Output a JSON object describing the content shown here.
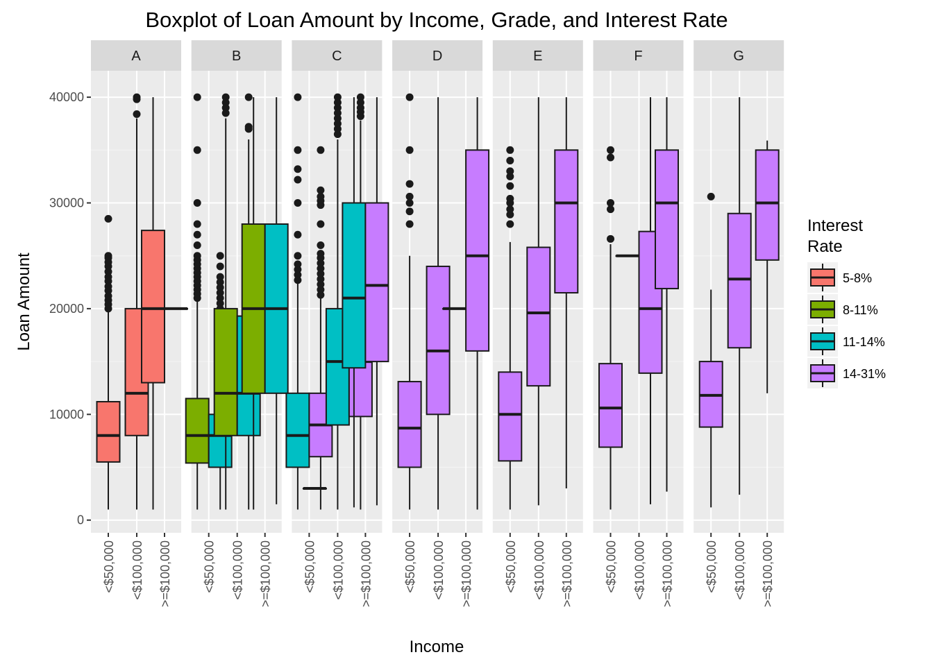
{
  "chart_data": {
    "type": "boxplot",
    "title": "Boxplot of Loan Amount by Income, Grade, and Interest Rate",
    "xlabel": "Income",
    "ylabel": "Loan Amount",
    "ylim": [
      -1200,
      42500
    ],
    "yticks": [
      0,
      10000,
      20000,
      30000,
      40000
    ],
    "ytick_labels": [
      "0",
      "10000",
      "20000",
      "30000",
      "40000"
    ],
    "grid": true,
    "income_levels": [
      "<$50,000",
      "<$100,000",
      ">=$100,000"
    ],
    "legend": {
      "title": "Interest\nRate",
      "position": "right",
      "items": [
        {
          "label": "5-8%",
          "color": "#F8766D"
        },
        {
          "label": "8-11%",
          "color": "#7CAE00"
        },
        {
          "label": "11-14%",
          "color": "#00BFC4"
        },
        {
          "label": "14-31%",
          "color": "#C77CFF"
        }
      ]
    },
    "panels": [
      {
        "grade": "A",
        "boxes": [
          {
            "income": 0,
            "rate": 0,
            "slot": 0,
            "nslots": 1,
            "lo": 1000,
            "q1": 5500,
            "med": 8000,
            "q3": 11200,
            "hi": 19800,
            "out": [
              20000,
              20400,
              20800,
              21200,
              21700,
              22100,
              22600,
              23000,
              23500,
              24000,
              24400,
              24800,
              25000,
              28500
            ]
          },
          {
            "income": 1,
            "rate": 0,
            "slot": 0,
            "nslots": 1,
            "lo": 1000,
            "q1": 8000,
            "med": 12000,
            "q3": 20000,
            "hi": 38000,
            "out": [
              38400,
              39800,
              40000
            ]
          },
          {
            "income": 2,
            "rate": 0,
            "slot": 0,
            "nslots": 2,
            "lo": 1000,
            "q1": 13000,
            "med": 20000,
            "q3": 27400,
            "hi": 40000,
            "out": []
          },
          {
            "income": 2,
            "rate": 0,
            "slot": 1,
            "nslots": 2,
            "lo": 20000,
            "q1": 20000,
            "med": 20000,
            "q3": 20000,
            "hi": 20000,
            "out": []
          }
        ]
      },
      {
        "grade": "B",
        "boxes": [
          {
            "income": 0,
            "rate": 1,
            "slot": 0,
            "nslots": 2,
            "lo": 1000,
            "q1": 5400,
            "med": 8000,
            "q3": 11500,
            "hi": 20800,
            "out": [
              21000,
              21400,
              21800,
              22200,
              22600,
              23000,
              23400,
              23800,
              24200,
              24600,
              25000,
              26000,
              27000,
              28000,
              30000,
              35000,
              40000
            ]
          },
          {
            "income": 0,
            "rate": 2,
            "slot": 1,
            "nslots": 2,
            "lo": 1000,
            "q1": 5000,
            "med": 8000,
            "q3": 10000,
            "hi": 18000,
            "out": [
              18500,
              19000,
              19500,
              20000,
              20500,
              21000,
              21500,
              22000,
              22500,
              23000,
              24000,
              25000
            ]
          },
          {
            "income": 1,
            "rate": 1,
            "slot": 0,
            "nslots": 2,
            "lo": 1000,
            "q1": 8000,
            "med": 12000,
            "q3": 20000,
            "hi": 38000,
            "out": [
              38500,
              39000,
              39500,
              40000
            ]
          },
          {
            "income": 1,
            "rate": 2,
            "slot": 1,
            "nslots": 2,
            "lo": 1000,
            "q1": 8000,
            "med": 12000,
            "q3": 19300,
            "hi": 36000,
            "out": [
              37000,
              37200,
              40000
            ]
          },
          {
            "income": 2,
            "rate": 1,
            "slot": 0,
            "nslots": 2,
            "lo": 1000,
            "q1": 12000,
            "med": 20000,
            "q3": 28000,
            "hi": 40000,
            "out": []
          },
          {
            "income": 2,
            "rate": 2,
            "slot": 1,
            "nslots": 2,
            "lo": 1500,
            "q1": 12000,
            "med": 20000,
            "q3": 28000,
            "hi": 40000,
            "out": []
          }
        ]
      },
      {
        "grade": "C",
        "boxes": [
          {
            "income": 0,
            "rate": 2,
            "slot": 0,
            "nslots": 2,
            "lo": 1000,
            "q1": 5000,
            "med": 8000,
            "q3": 12000,
            "hi": 22400,
            "out": [
              22700,
              23200,
              23700,
              24200,
              25000,
              27000,
              30000,
              32200,
              33200,
              35000,
              40000
            ]
          },
          {
            "income": 0,
            "rate": 3,
            "slot": 1,
            "nslots": 2,
            "lo": 1000,
            "q1": 6000,
            "med": 9000,
            "q3": 12000,
            "hi": 21000,
            "out": [
              21300,
              21800,
              22300,
              22800,
              23300,
              23800,
              24300,
              24800,
              25200,
              26000,
              28000,
              29800,
              30200,
              30600,
              31200,
              35000
            ]
          },
          {
            "income": 1,
            "rate": 1,
            "slot": 0,
            "nslots": 3,
            "lo": 3000,
            "q1": 3000,
            "med": 3000,
            "q3": 3000,
            "hi": 3000,
            "out": []
          },
          {
            "income": 1,
            "rate": 2,
            "slot": 1,
            "nslots": 3,
            "lo": 1000,
            "q1": 9000,
            "med": 15000,
            "q3": 20000,
            "hi": 36000,
            "out": [
              36500,
              37000,
              37500,
              38000,
              38500,
              39000,
              39500,
              40000
            ]
          },
          {
            "income": 1,
            "rate": 3,
            "slot": 2,
            "nslots": 3,
            "lo": 1000,
            "q1": 9800,
            "med": 15000,
            "q3": 21000,
            "hi": 37800,
            "out": [
              38200,
              38600,
              39000,
              39500,
              40000
            ]
          },
          {
            "income": 2,
            "rate": 2,
            "slot": 0,
            "nslots": 2,
            "lo": 1200,
            "q1": 14400,
            "med": 21000,
            "q3": 30000,
            "hi": 40000,
            "out": []
          },
          {
            "income": 2,
            "rate": 3,
            "slot": 1,
            "nslots": 2,
            "lo": 1400,
            "q1": 15000,
            "med": 22200,
            "q3": 30000,
            "hi": 40000,
            "out": []
          }
        ]
      },
      {
        "grade": "D",
        "boxes": [
          {
            "income": 0,
            "rate": 3,
            "slot": 0,
            "nslots": 1,
            "lo": 1000,
            "q1": 5000,
            "med": 8700,
            "q3": 13100,
            "hi": 25000,
            "out": [
              28000,
              29200,
              30000,
              30600,
              31800,
              35000,
              40000
            ]
          },
          {
            "income": 1,
            "rate": 3,
            "slot": 0,
            "nslots": 1,
            "lo": 1000,
            "q1": 10000,
            "med": 16000,
            "q3": 24000,
            "hi": 40000,
            "out": []
          },
          {
            "income": 2,
            "rate": 2,
            "slot": 0,
            "nslots": 2,
            "lo": 20000,
            "q1": 20000,
            "med": 20000,
            "q3": 20000,
            "hi": 20000,
            "out": []
          },
          {
            "income": 2,
            "rate": 3,
            "slot": 1,
            "nslots": 2,
            "lo": 1000,
            "q1": 16000,
            "med": 25000,
            "q3": 35000,
            "hi": 40000,
            "out": []
          }
        ]
      },
      {
        "grade": "E",
        "boxes": [
          {
            "income": 0,
            "rate": 3,
            "slot": 0,
            "nslots": 1,
            "lo": 1000,
            "q1": 5600,
            "med": 10000,
            "q3": 14000,
            "hi": 26300,
            "out": [
              28000,
              28900,
              29400,
              30000,
              30400,
              31600,
              32500,
              33000,
              34000,
              35000
            ]
          },
          {
            "income": 1,
            "rate": 3,
            "slot": 0,
            "nslots": 1,
            "lo": 1400,
            "q1": 12700,
            "med": 19600,
            "q3": 25800,
            "hi": 40000,
            "out": []
          },
          {
            "income": 2,
            "rate": 3,
            "slot": 0,
            "nslots": 1,
            "lo": 3000,
            "q1": 21500,
            "med": 30000,
            "q3": 35000,
            "hi": 40000,
            "out": []
          }
        ]
      },
      {
        "grade": "F",
        "boxes": [
          {
            "income": 0,
            "rate": 3,
            "slot": 0,
            "nslots": 1,
            "lo": 1000,
            "q1": 6900,
            "med": 10600,
            "q3": 14800,
            "hi": 26100,
            "out": [
              26600,
              29400,
              30000,
              34300,
              35000
            ]
          },
          {
            "income": 1,
            "rate": 2,
            "slot": 0,
            "nslots": 2,
            "lo": 25000,
            "q1": 25000,
            "med": 25000,
            "q3": 25000,
            "hi": 25000,
            "out": []
          },
          {
            "income": 1,
            "rate": 3,
            "slot": 1,
            "nslots": 2,
            "lo": 1500,
            "q1": 13900,
            "med": 20000,
            "q3": 27300,
            "hi": 40000,
            "out": []
          },
          {
            "income": 2,
            "rate": 3,
            "slot": 0,
            "nslots": 1,
            "lo": 2700,
            "q1": 21900,
            "med": 30000,
            "q3": 35000,
            "hi": 40000,
            "out": []
          }
        ]
      },
      {
        "grade": "G",
        "boxes": [
          {
            "income": 0,
            "rate": 3,
            "slot": 0,
            "nslots": 1,
            "lo": 1200,
            "q1": 8800,
            "med": 11800,
            "q3": 15000,
            "hi": 21800,
            "out": [
              30600
            ]
          },
          {
            "income": 1,
            "rate": 3,
            "slot": 0,
            "nslots": 1,
            "lo": 2400,
            "q1": 16300,
            "med": 22800,
            "q3": 29000,
            "hi": 40000,
            "out": []
          },
          {
            "income": 2,
            "rate": 3,
            "slot": 0,
            "nslots": 1,
            "lo": 12000,
            "q1": 24600,
            "med": 30000,
            "q3": 35000,
            "hi": 35900,
            "out": []
          }
        ]
      }
    ]
  }
}
